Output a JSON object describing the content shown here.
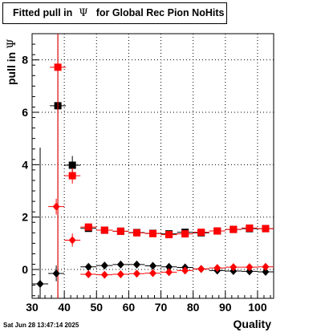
{
  "title_prefix": "Fitted pull in",
  "title_symbol": "Ψ",
  "title_suffix": "for Global Rec Pion NoHits",
  "ylabel_prefix": "pull in",
  "ylabel_symbol": "Ψ",
  "xlabel": "Quality",
  "datestamp": "Sat Jun 28 13:47:14 2025",
  "chart_data": {
    "type": "scatter",
    "xlim": [
      30,
      105
    ],
    "ylim": [
      -1.1,
      9.0
    ],
    "x_ticks": [
      30,
      40,
      50,
      60,
      70,
      80,
      90,
      100
    ],
    "y_ticks": [
      0,
      2,
      4,
      6,
      8
    ],
    "grid": true,
    "series": [
      {
        "color": "#000000",
        "marker": "square",
        "points": [
          [
            38,
            6.25,
            10.0
          ],
          [
            42.5,
            3.98,
            0.35
          ],
          [
            47.5,
            1.57,
            0.09
          ],
          [
            52.5,
            1.5,
            0.06
          ],
          [
            57.5,
            1.46,
            0.05
          ],
          [
            62.5,
            1.41,
            0.05
          ],
          [
            67.5,
            1.38,
            0.05
          ],
          [
            72.5,
            1.36,
            0.05
          ],
          [
            77.5,
            1.42,
            0.05
          ],
          [
            82.5,
            1.4,
            0.05
          ],
          [
            87.5,
            1.47,
            0.05
          ],
          [
            92.5,
            1.53,
            0.05
          ],
          [
            97.5,
            1.56,
            0.05
          ],
          [
            102.5,
            1.56,
            0.05
          ]
        ]
      },
      {
        "color": "#ff0000",
        "marker": "square",
        "points": [
          [
            38,
            7.72,
            10.0
          ],
          [
            42.5,
            3.58,
            0.3
          ],
          [
            47.5,
            1.62,
            0.1
          ],
          [
            52.5,
            1.5,
            0.06
          ],
          [
            57.5,
            1.46,
            0.05
          ],
          [
            62.5,
            1.4,
            0.05
          ],
          [
            67.5,
            1.37,
            0.05
          ],
          [
            72.5,
            1.33,
            0.05
          ],
          [
            77.5,
            1.36,
            0.05
          ],
          [
            82.5,
            1.42,
            0.05
          ],
          [
            87.5,
            1.47,
            0.05
          ],
          [
            92.5,
            1.53,
            0.05
          ],
          [
            97.5,
            1.58,
            0.05
          ],
          [
            102.5,
            1.56,
            0.05
          ]
        ]
      },
      {
        "color": "#000000",
        "marker": "diamond",
        "points": [
          [
            32.5,
            -0.55,
            5.2
          ],
          [
            37.5,
            -0.15,
            0.3
          ],
          [
            47.5,
            0.1,
            0.06
          ],
          [
            52.5,
            0.15,
            0.05
          ],
          [
            57.5,
            0.19,
            0.05
          ],
          [
            62.5,
            0.19,
            0.05
          ],
          [
            67.5,
            0.14,
            0.05
          ],
          [
            72.5,
            0.1,
            0.05
          ],
          [
            77.5,
            0.08,
            0.05
          ],
          [
            82.5,
            0.02,
            0.05
          ],
          [
            87.5,
            -0.04,
            0.05
          ],
          [
            92.5,
            -0.06,
            0.05
          ],
          [
            97.5,
            -0.07,
            0.05
          ],
          [
            102.5,
            -0.09,
            0.05
          ]
        ]
      },
      {
        "color": "#ff0000",
        "marker": "diamond",
        "points": [
          [
            37.5,
            2.4,
            0.3
          ],
          [
            42.5,
            1.12,
            0.25
          ],
          [
            47.5,
            -0.18,
            0.06
          ],
          [
            52.5,
            -0.2,
            0.05
          ],
          [
            57.5,
            -0.18,
            0.05
          ],
          [
            62.5,
            -0.16,
            0.05
          ],
          [
            67.5,
            -0.14,
            0.05
          ],
          [
            72.5,
            -0.1,
            0.05
          ],
          [
            77.5,
            -0.04,
            0.05
          ],
          [
            82.5,
            0.02,
            0.05
          ],
          [
            87.5,
            0.06,
            0.05
          ],
          [
            92.5,
            0.09,
            0.05
          ],
          [
            97.5,
            0.09,
            0.05
          ],
          [
            102.5,
            0.1,
            0.05
          ]
        ]
      }
    ]
  }
}
